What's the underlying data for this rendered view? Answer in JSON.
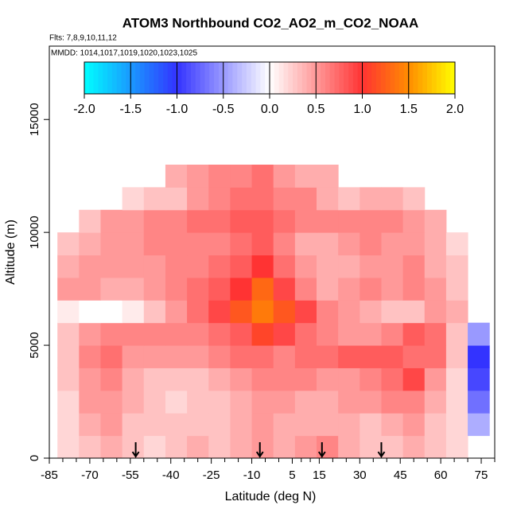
{
  "chart_data": {
    "type": "heatmap",
    "title": "ATOM3 Northbound CO2_AO2_m_CO2_NOAA",
    "subtitle": "Flts: 7,8,9,10,11,12",
    "annotation": "MMDD: 1014,1017,1019,1020,1023,1025",
    "x_label": "Latitude (deg N)",
    "y_label": "Altitude (m)",
    "xlim": [
      -85,
      80
    ],
    "ylim": [
      0,
      18250
    ],
    "xticks": [
      -85,
      -70,
      -55,
      -40,
      -25,
      -10,
      5,
      15,
      30,
      45,
      60,
      75
    ],
    "yticks": [
      0,
      5000,
      10000,
      15000
    ],
    "x": [
      -78,
      -70,
      -62,
      -54,
      -46,
      -38,
      -30,
      -22,
      -14,
      -6,
      2,
      10,
      18,
      26,
      34,
      42,
      50,
      58,
      66,
      74
    ],
    "y": [
      500,
      1500,
      2500,
      3500,
      4500,
      5500,
      6500,
      7500,
      8500,
      9500,
      10500,
      11500,
      12500
    ],
    "z": [
      [
        0.2,
        0.3,
        0.4,
        0.3,
        0.2,
        0.3,
        0.4,
        0.3,
        0.4,
        0.5,
        0.4,
        0.5,
        0.6,
        0.4,
        0.3,
        0.3,
        0.4,
        0.3,
        0.2,
        null
      ],
      [
        0.2,
        0.4,
        0.5,
        0.3,
        0.3,
        0.3,
        0.3,
        0.3,
        0.4,
        0.5,
        0.4,
        0.4,
        0.4,
        0.4,
        0.3,
        0.4,
        0.5,
        0.3,
        0.2,
        -0.4
      ],
      [
        0.2,
        0.5,
        0.5,
        0.4,
        0.3,
        0.2,
        0.3,
        0.3,
        0.4,
        0.5,
        0.5,
        0.4,
        0.4,
        0.5,
        0.5,
        0.6,
        0.6,
        0.4,
        0.2,
        -0.7
      ],
      [
        0.3,
        0.5,
        0.6,
        0.4,
        0.3,
        0.3,
        0.3,
        0.4,
        0.5,
        0.6,
        0.6,
        0.6,
        0.5,
        0.5,
        0.6,
        0.7,
        0.9,
        0.5,
        0.2,
        -0.9
      ],
      [
        0.3,
        0.6,
        0.7,
        0.5,
        0.5,
        0.5,
        0.5,
        0.6,
        0.7,
        0.7,
        0.6,
        0.7,
        0.7,
        0.8,
        0.8,
        0.8,
        0.7,
        0.7,
        0.3,
        -1.0
      ],
      [
        0.3,
        0.5,
        0.6,
        0.6,
        0.6,
        0.6,
        0.6,
        0.7,
        0.8,
        1.1,
        0.9,
        0.7,
        0.6,
        0.5,
        0.5,
        0.6,
        0.8,
        0.7,
        0.3,
        -0.5
      ],
      [
        0.1,
        0,
        0,
        0.1,
        0.3,
        0.5,
        0.7,
        0.9,
        1.2,
        1.4,
        1.2,
        0.9,
        0.6,
        0.5,
        0.4,
        0.3,
        0.3,
        0.5,
        0.4,
        null
      ],
      [
        0.5,
        0.5,
        0.4,
        0.4,
        0.5,
        0.6,
        0.7,
        0.8,
        1.0,
        1.3,
        0.9,
        0.6,
        0.4,
        0.5,
        0.6,
        0.5,
        0.6,
        0.5,
        0.3,
        null
      ],
      [
        0.4,
        0.5,
        0.5,
        0.5,
        0.5,
        0.6,
        0.6,
        0.7,
        0.8,
        1.0,
        0.7,
        0.5,
        0.4,
        0.4,
        0.5,
        0.5,
        0.6,
        0.4,
        0.3,
        null
      ],
      [
        0.3,
        0.4,
        0.5,
        0.5,
        0.6,
        0.6,
        0.6,
        0.6,
        0.7,
        0.8,
        0.6,
        0.4,
        0.4,
        0.5,
        0.6,
        0.5,
        0.5,
        0.4,
        0.2,
        null
      ],
      [
        null,
        0.3,
        0.5,
        0.5,
        0.6,
        0.6,
        0.7,
        0.7,
        0.8,
        0.8,
        0.7,
        0.6,
        0.6,
        0.6,
        0.6,
        0.6,
        0.5,
        0.4,
        null,
        null
      ],
      [
        null,
        null,
        null,
        0.2,
        0.3,
        0.3,
        0.5,
        0.6,
        0.7,
        0.7,
        0.6,
        0.6,
        0.4,
        0.3,
        0.4,
        0.4,
        0.3,
        null,
        null,
        null
      ],
      [
        null,
        null,
        null,
        null,
        null,
        0.4,
        0.5,
        0.6,
        0.6,
        0.7,
        0.5,
        0.4,
        0.4,
        null,
        null,
        null,
        null,
        null,
        null,
        null
      ]
    ],
    "arrows_lat": [
      -53,
      -7,
      16,
      38
    ],
    "colorscale": [
      [
        -2,
        "#00ffff"
      ],
      [
        -1,
        "#3333ff"
      ],
      [
        0,
        "#ffffff"
      ],
      [
        1,
        "#ff3333"
      ],
      [
        1.5,
        "#ff8c00"
      ],
      [
        2,
        "#ffff00"
      ]
    ],
    "color_lim": [
      -2,
      2
    ],
    "color_ticks": [
      {
        "value": -2,
        "label": "-2.0"
      },
      {
        "value": -1.5,
        "label": "-1.5"
      },
      {
        "value": -1,
        "label": "-1.0"
      },
      {
        "value": -0.5,
        "label": "-0.5"
      },
      {
        "value": 0,
        "label": "0.0"
      },
      {
        "value": 0.5,
        "label": "0.5"
      },
      {
        "value": 1,
        "label": "1.0"
      },
      {
        "value": 1.5,
        "label": "1.5"
      },
      {
        "value": 2,
        "label": "2.0"
      }
    ]
  }
}
